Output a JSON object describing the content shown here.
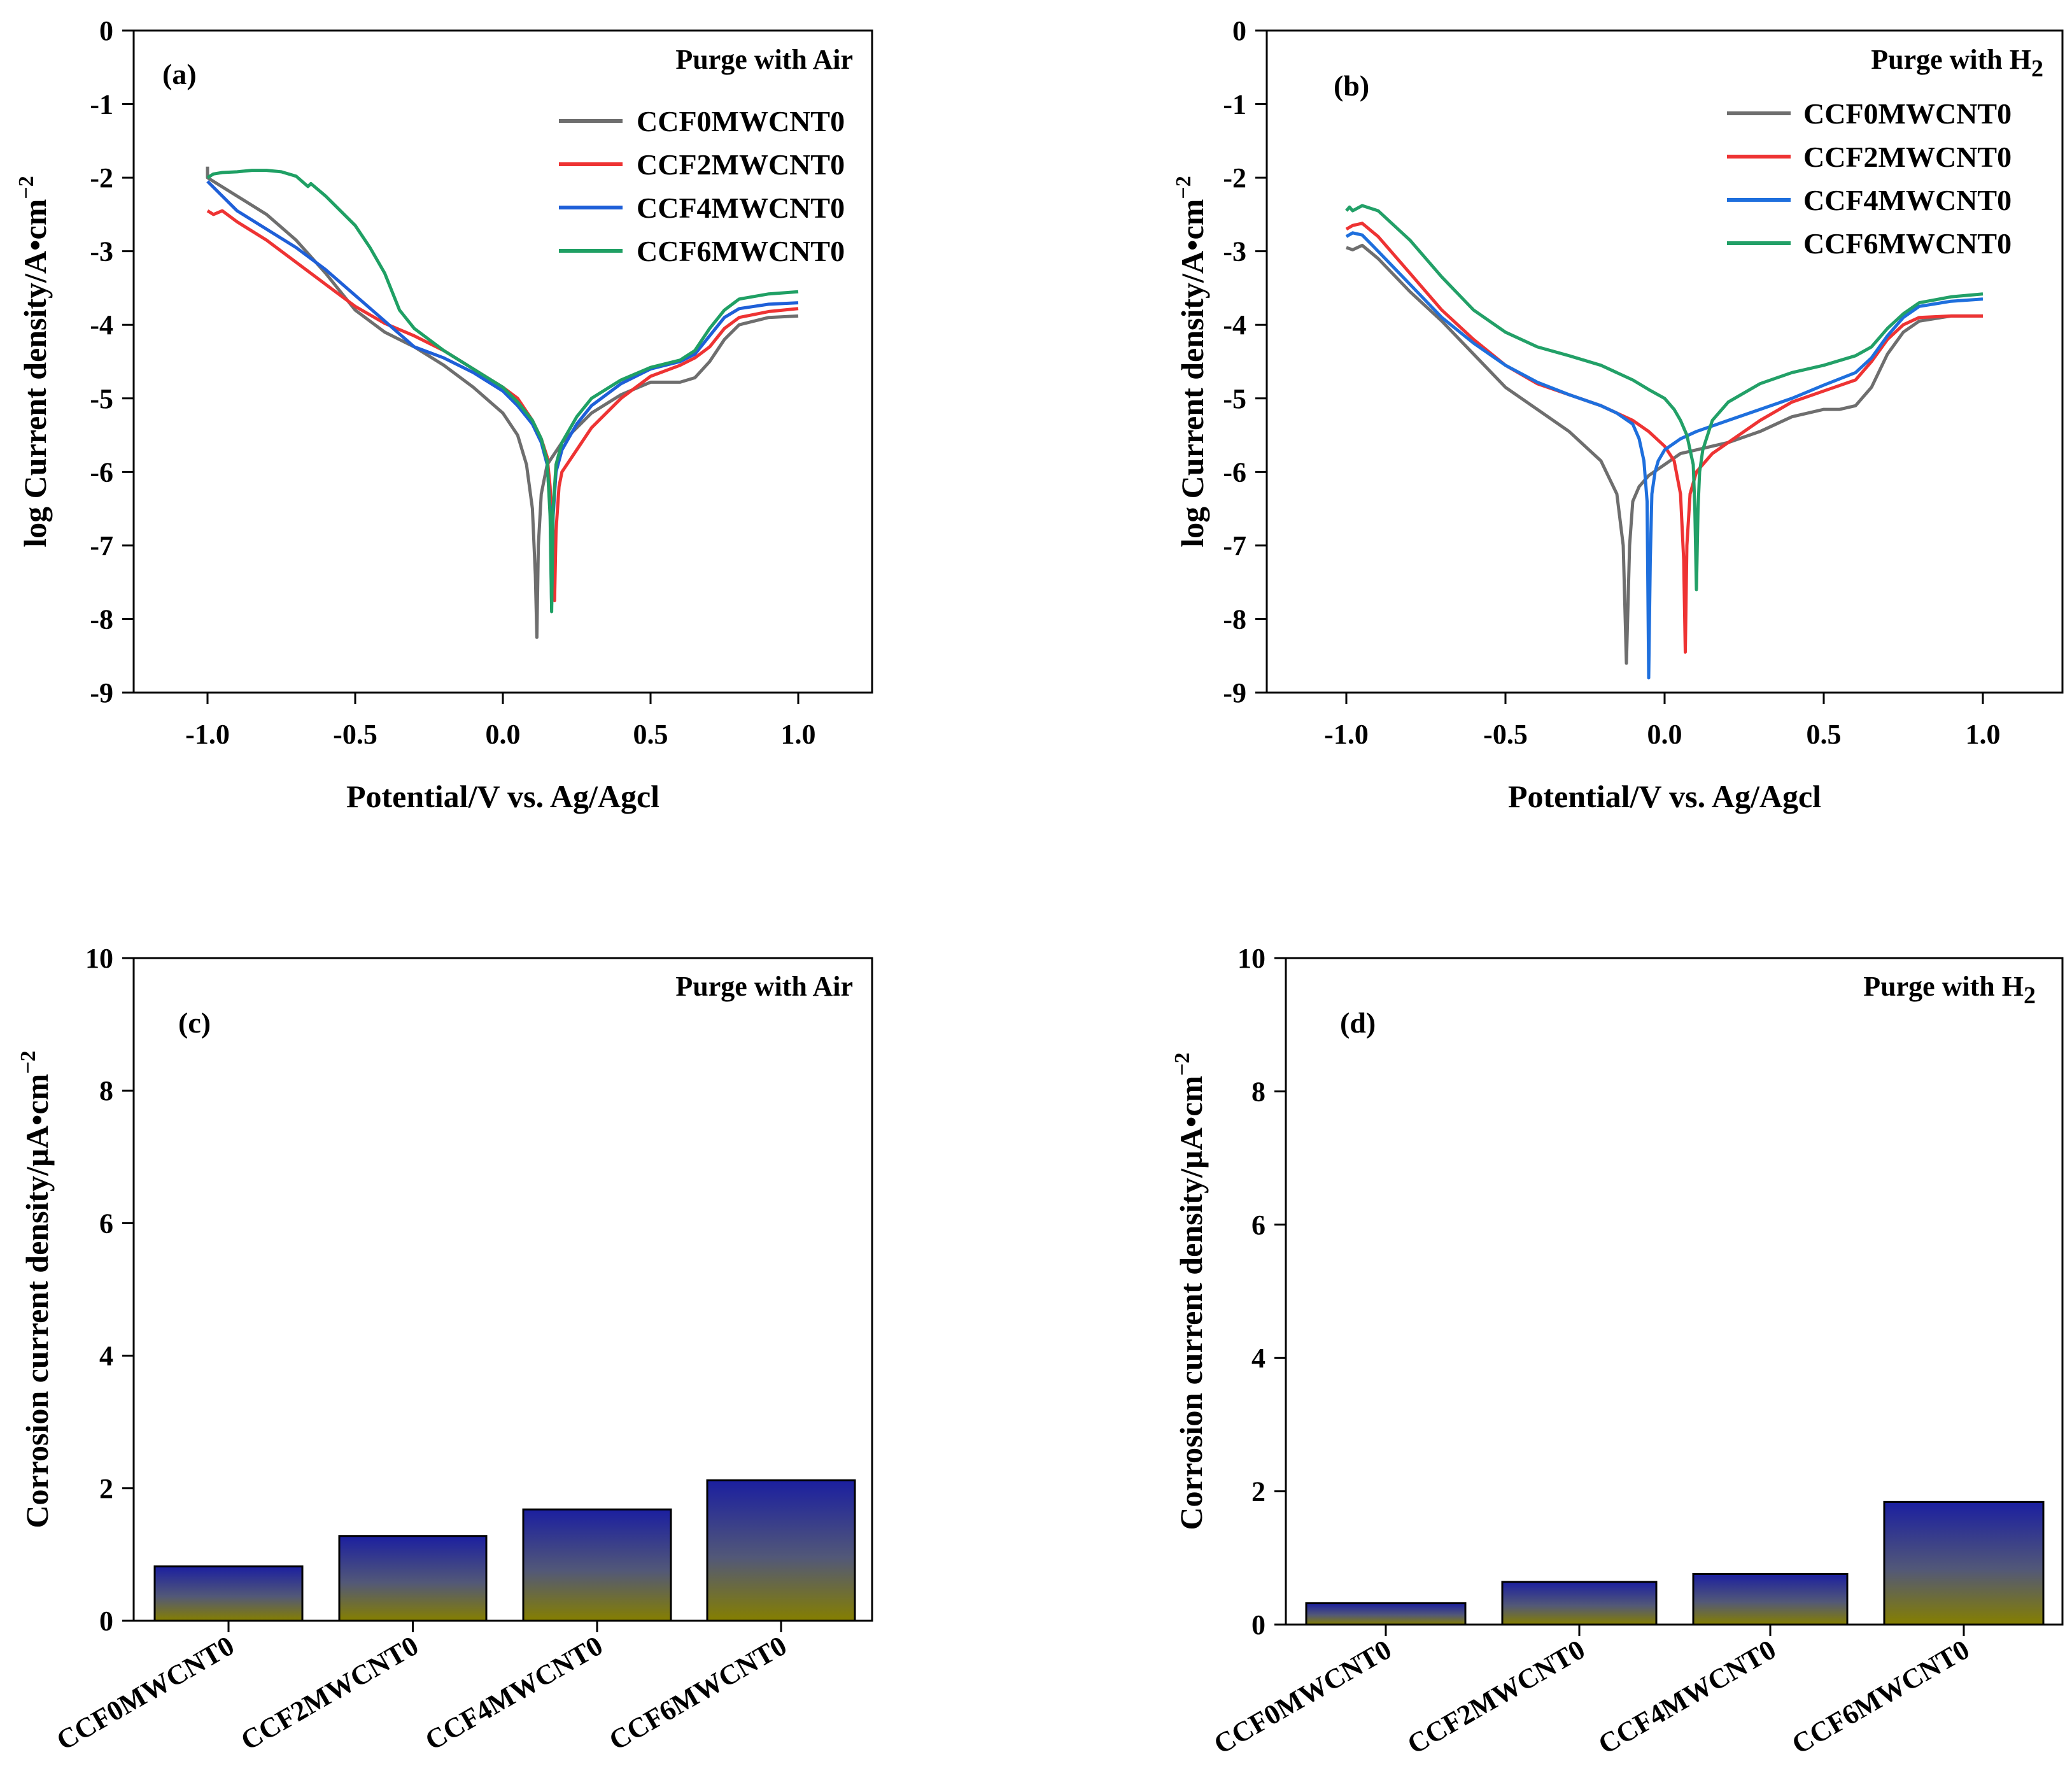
{
  "chart_data": [
    {
      "panel": "(a)",
      "type": "line",
      "annotation": "Purge with Air",
      "xlabel": "Potential/V vs. Ag/Agcl",
      "ylabel": "log Current density/A•cm",
      "ylabel_sup": "−2",
      "xlim": [
        -1.25,
        1.25
      ],
      "ylim": [
        -9,
        0
      ],
      "xticks": [
        -1.0,
        -0.5,
        0.0,
        0.5,
        1.0
      ],
      "xtick_labels": [
        "-1.0",
        "-0.5",
        "0.0",
        "0.5",
        "1.0"
      ],
      "yticks": [
        0,
        -1,
        -2,
        -3,
        -4,
        -5,
        -6,
        -7,
        -8,
        -9
      ],
      "ytick_labels": [
        "0",
        "-1",
        "-2",
        "-3",
        "-4",
        "-5",
        "-6",
        "-7",
        "-8",
        "-9"
      ],
      "legend_position": "top-right",
      "series": [
        {
          "name": "CCF0MWCNT0",
          "color": "#6e6e6e",
          "x": [
            -1.0,
            -1.0,
            -0.9,
            -0.8,
            -0.7,
            -0.6,
            -0.5,
            -0.4,
            -0.3,
            -0.2,
            -0.1,
            0.0,
            0.05,
            0.08,
            0.1,
            0.11,
            0.115,
            0.12,
            0.13,
            0.15,
            0.2,
            0.3,
            0.4,
            0.5,
            0.55,
            0.6,
            0.65,
            0.7,
            0.75,
            0.8,
            0.9,
            1.0
          ],
          "y": [
            -1.85,
            -2.0,
            -2.25,
            -2.5,
            -2.85,
            -3.3,
            -3.8,
            -4.1,
            -4.3,
            -4.55,
            -4.85,
            -5.2,
            -5.5,
            -5.9,
            -6.5,
            -7.4,
            -8.25,
            -7.0,
            -6.3,
            -5.9,
            -5.6,
            -5.2,
            -4.95,
            -4.78,
            -4.78,
            -4.78,
            -4.72,
            -4.5,
            -4.2,
            -4.0,
            -3.9,
            -3.88
          ]
        },
        {
          "name": "CCF2MWCNT0",
          "color": "#ee3333",
          "x": [
            -1.0,
            -0.98,
            -0.95,
            -0.9,
            -0.8,
            -0.7,
            -0.6,
            -0.5,
            -0.4,
            -0.3,
            -0.2,
            -0.1,
            0.0,
            0.05,
            0.1,
            0.13,
            0.15,
            0.16,
            0.17,
            0.175,
            0.18,
            0.19,
            0.2,
            0.25,
            0.3,
            0.4,
            0.5,
            0.6,
            0.65,
            0.7,
            0.75,
            0.8,
            0.9,
            1.0
          ],
          "y": [
            -2.45,
            -2.5,
            -2.45,
            -2.6,
            -2.85,
            -3.15,
            -3.45,
            -3.75,
            -3.98,
            -4.15,
            -4.35,
            -4.6,
            -4.85,
            -5.0,
            -5.3,
            -5.55,
            -5.8,
            -6.2,
            -7.0,
            -7.75,
            -6.8,
            -6.2,
            -6.0,
            -5.7,
            -5.4,
            -5.0,
            -4.7,
            -4.55,
            -4.45,
            -4.3,
            -4.05,
            -3.9,
            -3.82,
            -3.78
          ]
        },
        {
          "name": "CCF4MWCNT0",
          "color": "#1e5fd8",
          "x": [
            -1.0,
            -0.95,
            -0.9,
            -0.8,
            -0.7,
            -0.6,
            -0.5,
            -0.4,
            -0.3,
            -0.2,
            -0.1,
            0.0,
            0.05,
            0.1,
            0.13,
            0.15,
            0.16,
            0.165,
            0.17,
            0.18,
            0.2,
            0.25,
            0.3,
            0.4,
            0.5,
            0.6,
            0.65,
            0.7,
            0.75,
            0.8,
            0.9,
            1.0
          ],
          "y": [
            -2.05,
            -2.25,
            -2.45,
            -2.7,
            -2.95,
            -3.25,
            -3.6,
            -3.95,
            -4.3,
            -4.45,
            -4.65,
            -4.9,
            -5.1,
            -5.35,
            -5.6,
            -5.9,
            -6.5,
            -7.8,
            -6.6,
            -6.0,
            -5.7,
            -5.35,
            -5.1,
            -4.8,
            -4.6,
            -4.5,
            -4.4,
            -4.15,
            -3.9,
            -3.78,
            -3.72,
            -3.7
          ]
        },
        {
          "name": "CCF6MWCNT0",
          "color": "#1fa064",
          "x": [
            -1.0,
            -0.98,
            -0.95,
            -0.9,
            -0.85,
            -0.8,
            -0.75,
            -0.7,
            -0.68,
            -0.66,
            -0.65,
            -0.6,
            -0.5,
            -0.45,
            -0.4,
            -0.35,
            -0.3,
            -0.2,
            -0.1,
            0.0,
            0.05,
            0.1,
            0.13,
            0.15,
            0.16,
            0.165,
            0.17,
            0.18,
            0.2,
            0.25,
            0.3,
            0.4,
            0.5,
            0.6,
            0.65,
            0.7,
            0.75,
            0.8,
            0.9,
            1.0
          ],
          "y": [
            -2.0,
            -1.95,
            -1.93,
            -1.92,
            -1.9,
            -1.9,
            -1.92,
            -1.98,
            -2.05,
            -2.12,
            -2.08,
            -2.25,
            -2.65,
            -2.95,
            -3.3,
            -3.8,
            -4.05,
            -4.35,
            -4.6,
            -4.85,
            -5.05,
            -5.3,
            -5.55,
            -5.85,
            -6.6,
            -7.9,
            -6.5,
            -5.9,
            -5.6,
            -5.25,
            -5.0,
            -4.75,
            -4.58,
            -4.48,
            -4.35,
            -4.05,
            -3.8,
            -3.65,
            -3.58,
            -3.55
          ]
        }
      ]
    },
    {
      "panel": "(b)",
      "type": "line",
      "annotation": "Purge with H",
      "annotation_sub": "2",
      "xlabel": "Potential/V vs. Ag/Agcl",
      "ylabel": "log Current density/A•cm",
      "ylabel_sup": "−2",
      "xlim": [
        -1.25,
        1.25
      ],
      "ylim": [
        -9,
        0
      ],
      "xticks": [
        -1.0,
        -0.5,
        0.0,
        0.5,
        1.0
      ],
      "xtick_labels": [
        "-1.0",
        "-0.5",
        "0.0",
        "0.5",
        "1.0"
      ],
      "yticks": [
        0,
        -1,
        -2,
        -3,
        -4,
        -5,
        -6,
        -7,
        -8,
        -9
      ],
      "ytick_labels": [
        "0",
        "-1",
        "-2",
        "-3",
        "-4",
        "-5",
        "-6",
        "-7",
        "-8",
        "-9"
      ],
      "legend_position": "top-right",
      "series": [
        {
          "name": "CCF0MWCNT0",
          "color": "#6e6e6e",
          "x": [
            -1.0,
            -0.98,
            -0.95,
            -0.9,
            -0.8,
            -0.7,
            -0.6,
            -0.5,
            -0.4,
            -0.3,
            -0.2,
            -0.15,
            -0.13,
            -0.12,
            -0.11,
            -0.1,
            -0.08,
            -0.05,
            0.0,
            0.05,
            0.1,
            0.2,
            0.3,
            0.4,
            0.5,
            0.55,
            0.6,
            0.65,
            0.7,
            0.75,
            0.8,
            0.9,
            1.0
          ],
          "y": [
            -2.95,
            -2.98,
            -2.92,
            -3.1,
            -3.55,
            -3.95,
            -4.4,
            -4.85,
            -5.15,
            -5.45,
            -5.85,
            -6.3,
            -7.0,
            -8.6,
            -7.0,
            -6.4,
            -6.2,
            -6.05,
            -5.9,
            -5.75,
            -5.7,
            -5.6,
            -5.45,
            -5.25,
            -5.15,
            -5.15,
            -5.1,
            -4.85,
            -4.4,
            -4.1,
            -3.95,
            -3.88,
            -3.88
          ]
        },
        {
          "name": "CCF2MWCNT0",
          "color": "#ee3333",
          "x": [
            -1.0,
            -0.98,
            -0.95,
            -0.9,
            -0.8,
            -0.7,
            -0.6,
            -0.5,
            -0.4,
            -0.3,
            -0.2,
            -0.1,
            -0.05,
            0.0,
            0.03,
            0.05,
            0.06,
            0.065,
            0.07,
            0.08,
            0.1,
            0.15,
            0.2,
            0.3,
            0.4,
            0.5,
            0.6,
            0.65,
            0.7,
            0.75,
            0.8,
            0.9,
            1.0
          ],
          "y": [
            -2.7,
            -2.65,
            -2.62,
            -2.8,
            -3.3,
            -3.8,
            -4.2,
            -4.55,
            -4.8,
            -4.95,
            -5.1,
            -5.3,
            -5.45,
            -5.65,
            -5.85,
            -6.3,
            -7.2,
            -8.45,
            -7.0,
            -6.3,
            -6.0,
            -5.75,
            -5.6,
            -5.3,
            -5.05,
            -4.9,
            -4.75,
            -4.5,
            -4.2,
            -4.0,
            -3.9,
            -3.88,
            -3.88
          ]
        },
        {
          "name": "CCF4MWCNT0",
          "color": "#1e6fdd",
          "x": [
            -1.0,
            -0.98,
            -0.95,
            -0.9,
            -0.8,
            -0.7,
            -0.6,
            -0.5,
            -0.4,
            -0.3,
            -0.2,
            -0.15,
            -0.1,
            -0.08,
            -0.065,
            -0.055,
            -0.05,
            -0.045,
            -0.04,
            -0.03,
            -0.02,
            0.0,
            0.05,
            0.1,
            0.2,
            0.3,
            0.4,
            0.5,
            0.6,
            0.65,
            0.7,
            0.75,
            0.8,
            0.9,
            1.0
          ],
          "y": [
            -2.8,
            -2.75,
            -2.78,
            -3.0,
            -3.45,
            -3.9,
            -4.25,
            -4.55,
            -4.78,
            -4.95,
            -5.1,
            -5.2,
            -5.35,
            -5.55,
            -5.85,
            -6.4,
            -8.8,
            -7.2,
            -6.3,
            -6.0,
            -5.85,
            -5.7,
            -5.55,
            -5.45,
            -5.3,
            -5.15,
            -5.0,
            -4.82,
            -4.65,
            -4.45,
            -4.15,
            -3.9,
            -3.75,
            -3.68,
            -3.65
          ]
        },
        {
          "name": "CCF6MWCNT0",
          "color": "#22a067",
          "x": [
            -1.0,
            -0.99,
            -0.98,
            -0.95,
            -0.9,
            -0.8,
            -0.7,
            -0.6,
            -0.5,
            -0.4,
            -0.3,
            -0.2,
            -0.1,
            -0.05,
            0.0,
            0.03,
            0.05,
            0.07,
            0.09,
            0.095,
            0.1,
            0.105,
            0.11,
            0.12,
            0.15,
            0.2,
            0.3,
            0.4,
            0.5,
            0.6,
            0.65,
            0.7,
            0.75,
            0.8,
            0.9,
            1.0
          ],
          "y": [
            -2.45,
            -2.4,
            -2.45,
            -2.38,
            -2.45,
            -2.85,
            -3.35,
            -3.8,
            -4.1,
            -4.3,
            -4.42,
            -4.55,
            -4.75,
            -4.88,
            -5.0,
            -5.15,
            -5.3,
            -5.5,
            -5.9,
            -6.5,
            -7.6,
            -6.5,
            -6.0,
            -5.7,
            -5.3,
            -5.05,
            -4.8,
            -4.65,
            -4.55,
            -4.42,
            -4.3,
            -4.05,
            -3.85,
            -3.7,
            -3.62,
            -3.58
          ]
        }
      ]
    },
    {
      "panel": "(c)",
      "type": "bar",
      "annotation": "Purge with Air",
      "ylabel": "Corrosion current density/µA•cm",
      "ylabel_sup": "−2",
      "ylim": [
        0,
        10
      ],
      "yticks": [
        0,
        2,
        4,
        6,
        8,
        10
      ],
      "ytick_labels": [
        "0",
        "2",
        "4",
        "6",
        "8",
        "10"
      ],
      "categories": [
        "CCF0MWCNT0",
        "CCF2MWCNT0",
        "CCF4MWCNT0",
        "CCF6MWCNT0"
      ],
      "values": [
        0.82,
        1.28,
        1.68,
        2.12
      ]
    },
    {
      "panel": "(d)",
      "type": "bar",
      "annotation": "Purge with H",
      "annotation_sub": "2",
      "ylabel": "Corrosion current density/µA•cm",
      "ylabel_sup": "−2",
      "ylim": [
        0,
        10
      ],
      "yticks": [
        0,
        2,
        4,
        6,
        8,
        10
      ],
      "ytick_labels": [
        "0",
        "2",
        "4",
        "6",
        "8",
        "10"
      ],
      "categories": [
        "CCF0MWCNT0",
        "CCF2MWCNT0",
        "CCF4MWCNT0",
        "CCF6MWCNT0"
      ],
      "values": [
        0.32,
        0.64,
        0.76,
        1.84
      ]
    }
  ],
  "colors": {
    "bar_gradient_top": "#1b1fa0",
    "bar_gradient_bottom": "#857f00",
    "axis": "#000000"
  }
}
